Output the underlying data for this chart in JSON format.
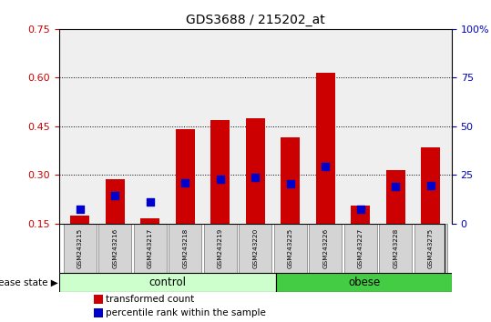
{
  "title": "GDS3688 / 215202_at",
  "samples": [
    "GSM243215",
    "GSM243216",
    "GSM243217",
    "GSM243218",
    "GSM243219",
    "GSM243220",
    "GSM243225",
    "GSM243226",
    "GSM243227",
    "GSM243228",
    "GSM243275"
  ],
  "n_control": 6,
  "n_obese": 5,
  "red_values": [
    0.175,
    0.285,
    0.165,
    0.44,
    0.47,
    0.475,
    0.415,
    0.615,
    0.205,
    0.315,
    0.385
  ],
  "blue_values": [
    0.195,
    0.235,
    0.215,
    0.275,
    0.285,
    0.293,
    0.273,
    0.325,
    0.195,
    0.265,
    0.268
  ],
  "baseline": 0.15,
  "ylim": [
    0.15,
    0.75
  ],
  "yticks_left": [
    0.15,
    0.3,
    0.45,
    0.6,
    0.75
  ],
  "yticks_right": [
    0,
    25,
    50,
    75,
    100
  ],
  "bar_color_red": "#CC0000",
  "bar_color_blue": "#0000CC",
  "control_color": "#CCFFCC",
  "obese_color": "#44CC44",
  "plot_bg": "#EFEFEF",
  "left_tick_color": "#CC0000",
  "right_tick_color": "#0000BB",
  "bar_width": 0.55,
  "label_disease_state": "disease state",
  "label_control": "control",
  "label_obese": "obese",
  "legend_red": "transformed count",
  "legend_blue": "percentile rank within the sample",
  "blue_square_size": 28
}
